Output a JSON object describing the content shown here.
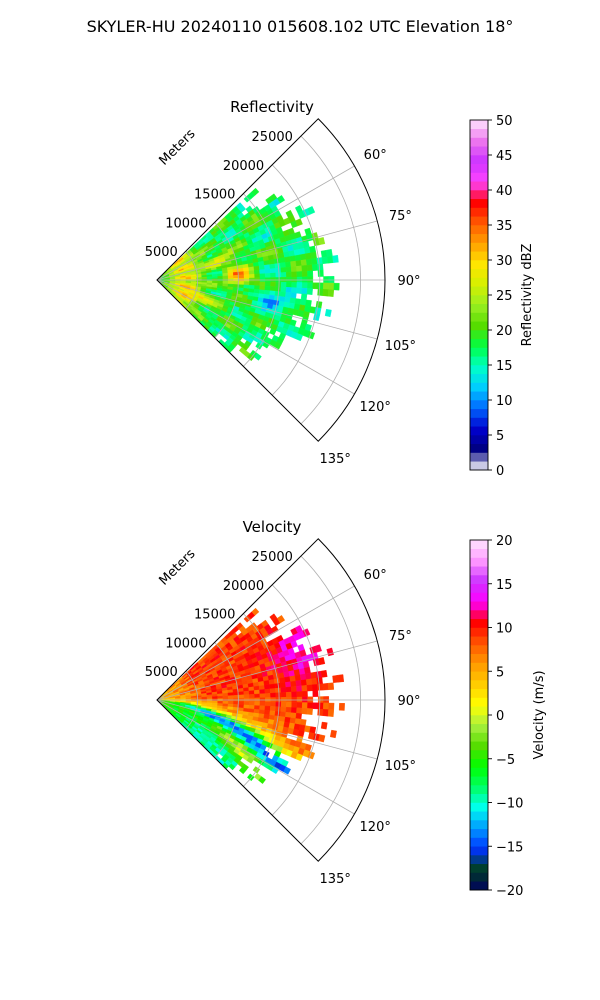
{
  "suptitle": "SKYLER-HU  20240110  015608.102 UTC Elevation 18°",
  "chart_data": [
    {
      "type": "heatmap",
      "projection": "polar-sector",
      "title": "Reflectivity",
      "range_axis_label": "Meters",
      "range_ticks": [
        "5000",
        "10000",
        "15000",
        "20000",
        "25000"
      ],
      "range_tick_values": [
        5000,
        10000,
        15000,
        20000,
        25000
      ],
      "range_max": 28000,
      "azimuth_range_deg": [
        45,
        135
      ],
      "azimuth_ticks": [
        "60°",
        "75°",
        "90°",
        "105°",
        "120°",
        "135°"
      ],
      "azimuth_tick_values": [
        60,
        75,
        90,
        105,
        120,
        135
      ],
      "grid": true,
      "data_extent_m": 21000,
      "colorbar": {
        "label": "Reflectivity dBZ",
        "min": 0,
        "max": 50,
        "levels": 40,
        "ticks": [
          "0",
          "5",
          "10",
          "15",
          "20",
          "25",
          "30",
          "35",
          "40",
          "45",
          "50"
        ],
        "tick_values": [
          0,
          5,
          10,
          15,
          20,
          25,
          30,
          35,
          40,
          45,
          50
        ],
        "colors": [
          "#ffffff",
          "#000080",
          "#0000cd",
          "#0066ff",
          "#00ccff",
          "#00ffc8",
          "#00ff44",
          "#55dd00",
          "#99ee22",
          "#d4f000",
          "#ffe600",
          "#ffa000",
          "#ff5a00",
          "#ff0000",
          "#ff44ff",
          "#cc33ff",
          "#ee77ee",
          "#ffe6ff"
        ]
      }
    },
    {
      "type": "heatmap",
      "projection": "polar-sector",
      "title": "Velocity",
      "range_axis_label": "Meters",
      "range_ticks": [
        "5000",
        "10000",
        "15000",
        "20000",
        "25000"
      ],
      "range_tick_values": [
        5000,
        10000,
        15000,
        20000,
        25000
      ],
      "range_max": 28000,
      "azimuth_range_deg": [
        45,
        135
      ],
      "azimuth_ticks": [
        "60°",
        "75°",
        "90°",
        "105°",
        "120°",
        "135°"
      ],
      "azimuth_tick_values": [
        60,
        75,
        90,
        105,
        120,
        135
      ],
      "grid": true,
      "data_extent_m": 21000,
      "colorbar": {
        "label": "Velocity (m/s)",
        "min": -20,
        "max": 20,
        "levels": 40,
        "ticks": [
          "−20",
          "−15",
          "−10",
          "−5",
          "0",
          "5",
          "10",
          "15",
          "20"
        ],
        "tick_values": [
          -20,
          -15,
          -10,
          -5,
          0,
          5,
          10,
          15,
          20
        ],
        "colors": [
          "#000060",
          "#004020",
          "#0033ff",
          "#0099ff",
          "#00ffee",
          "#00ff66",
          "#00ff00",
          "#55dd00",
          "#aaf040",
          "#ffff00",
          "#ffcc00",
          "#ff9900",
          "#ff5500",
          "#ff0000",
          "#ff00ff",
          "#cc33ff",
          "#ff99ff",
          "#ffe6ff"
        ]
      }
    }
  ]
}
